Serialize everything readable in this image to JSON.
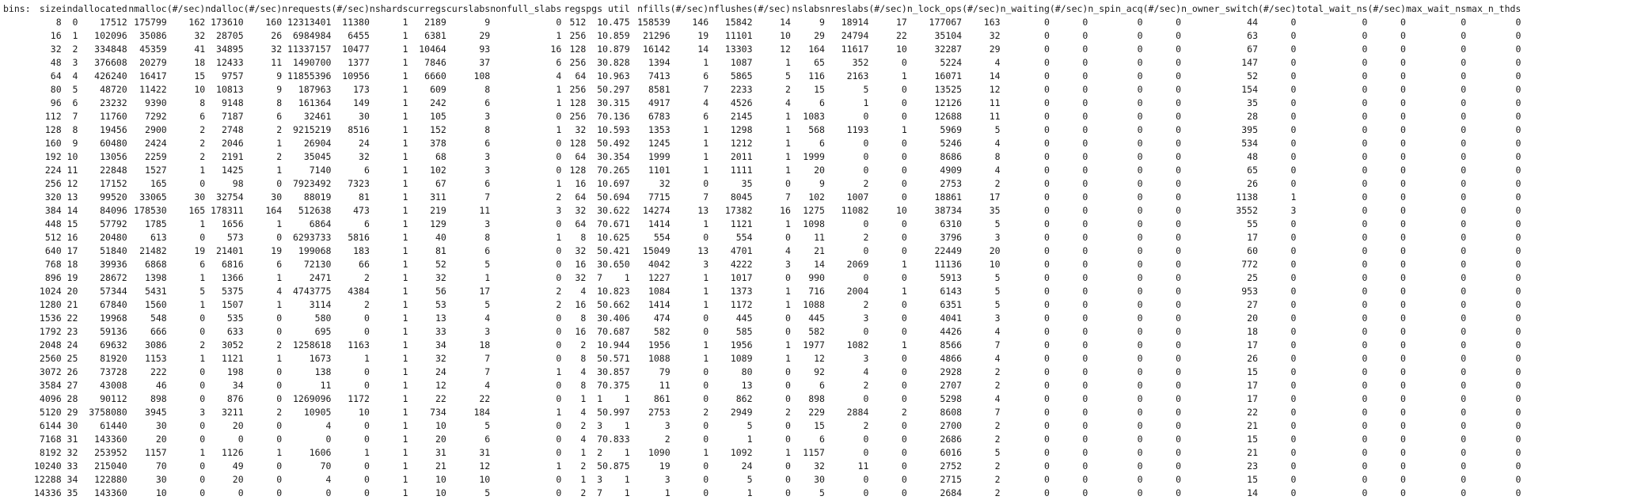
{
  "header": [
    "bins:",
    "size",
    "ind",
    "allocated",
    "nmalloc",
    "(#/sec)",
    "ndalloc",
    "(#/sec)",
    "nrequests",
    "(#/sec)",
    "nshards",
    "curregs",
    "curslabs",
    "nonfull_slabs",
    "regs",
    "pgs",
    "util",
    "nfills",
    "(#/sec)",
    "nflushes",
    "(#/sec)",
    "nslabs",
    "nreslabs",
    "(#/sec)",
    "n_lock_ops",
    "(#/sec)",
    "n_waiting",
    "(#/sec)",
    "n_spin_acq",
    "(#/sec)",
    "n_owner_switch",
    "(#/sec)",
    "total_wait_ns",
    "(#/sec)",
    "max_wait_ns",
    "max_n_thds"
  ],
  "rows": [
    [
      "",
      "8",
      "0",
      "17512",
      "175799",
      "162",
      "173610",
      "160",
      "12313401",
      "11380",
      "1",
      "2189",
      "9",
      "0",
      "512",
      "1",
      "0.475",
      "158539",
      "146",
      "15842",
      "14",
      "9",
      "18914",
      "17",
      "177067",
      "163",
      "0",
      "0",
      "0",
      "0",
      "44",
      "0",
      "0",
      "0",
      "0",
      "0"
    ],
    [
      "",
      "16",
      "1",
      "102096",
      "35086",
      "32",
      "28705",
      "26",
      "6984984",
      "6455",
      "1",
      "6381",
      "29",
      "1",
      "256",
      "1",
      "0.859",
      "21296",
      "19",
      "11101",
      "10",
      "29",
      "24794",
      "22",
      "35104",
      "32",
      "0",
      "0",
      "0",
      "0",
      "63",
      "0",
      "0",
      "0",
      "0",
      "0"
    ],
    [
      "",
      "32",
      "2",
      "334848",
      "45359",
      "41",
      "34895",
      "32",
      "11337157",
      "10477",
      "1",
      "10464",
      "93",
      "16",
      "128",
      "1",
      "0.879",
      "16142",
      "14",
      "13303",
      "12",
      "164",
      "11617",
      "10",
      "32287",
      "29",
      "0",
      "0",
      "0",
      "0",
      "67",
      "0",
      "0",
      "0",
      "0",
      "0"
    ],
    [
      "",
      "48",
      "3",
      "376608",
      "20279",
      "18",
      "12433",
      "11",
      "1490700",
      "1377",
      "1",
      "7846",
      "37",
      "6",
      "256",
      "3",
      "0.828",
      "1394",
      "1",
      "1087",
      "1",
      "65",
      "352",
      "0",
      "5224",
      "4",
      "0",
      "0",
      "0",
      "0",
      "147",
      "0",
      "0",
      "0",
      "0",
      "0"
    ],
    [
      "",
      "64",
      "4",
      "426240",
      "16417",
      "15",
      "9757",
      "9",
      "11855396",
      "10956",
      "1",
      "6660",
      "108",
      "4",
      "64",
      "1",
      "0.963",
      "7413",
      "6",
      "5865",
      "5",
      "116",
      "2163",
      "1",
      "16071",
      "14",
      "0",
      "0",
      "0",
      "0",
      "52",
      "0",
      "0",
      "0",
      "0",
      "0"
    ],
    [
      "",
      "80",
      "5",
      "48720",
      "11422",
      "10",
      "10813",
      "9",
      "187963",
      "173",
      "1",
      "609",
      "8",
      "1",
      "256",
      "5",
      "0.297",
      "8581",
      "7",
      "2233",
      "2",
      "15",
      "5",
      "0",
      "13525",
      "12",
      "0",
      "0",
      "0",
      "0",
      "154",
      "0",
      "0",
      "0",
      "0",
      "0"
    ],
    [
      "",
      "96",
      "6",
      "23232",
      "9390",
      "8",
      "9148",
      "8",
      "161364",
      "149",
      "1",
      "242",
      "6",
      "1",
      "128",
      "3",
      "0.315",
      "4917",
      "4",
      "4526",
      "4",
      "6",
      "1",
      "0",
      "12126",
      "11",
      "0",
      "0",
      "0",
      "0",
      "35",
      "0",
      "0",
      "0",
      "0",
      "0"
    ],
    [
      "",
      "112",
      "7",
      "11760",
      "7292",
      "6",
      "7187",
      "6",
      "32461",
      "30",
      "1",
      "105",
      "3",
      "0",
      "256",
      "7",
      "0.136",
      "6783",
      "6",
      "2145",
      "1",
      "1083",
      "0",
      "0",
      "12688",
      "11",
      "0",
      "0",
      "0",
      "0",
      "28",
      "0",
      "0",
      "0",
      "0",
      "0"
    ],
    [
      "",
      "128",
      "8",
      "19456",
      "2900",
      "2",
      "2748",
      "2",
      "9215219",
      "8516",
      "1",
      "152",
      "8",
      "1",
      "32",
      "1",
      "0.593",
      "1353",
      "1",
      "1298",
      "1",
      "568",
      "1193",
      "1",
      "5969",
      "5",
      "0",
      "0",
      "0",
      "0",
      "395",
      "0",
      "0",
      "0",
      "0",
      "0"
    ],
    [
      "",
      "160",
      "9",
      "60480",
      "2424",
      "2",
      "2046",
      "1",
      "26904",
      "24",
      "1",
      "378",
      "6",
      "0",
      "128",
      "5",
      "0.492",
      "1245",
      "1",
      "1212",
      "1",
      "6",
      "0",
      "0",
      "5246",
      "4",
      "0",
      "0",
      "0",
      "0",
      "534",
      "0",
      "0",
      "0",
      "0",
      "0"
    ],
    [
      "",
      "192",
      "10",
      "13056",
      "2259",
      "2",
      "2191",
      "2",
      "35045",
      "32",
      "1",
      "68",
      "3",
      "0",
      "64",
      "3",
      "0.354",
      "1999",
      "1",
      "2011",
      "1",
      "1999",
      "0",
      "0",
      "8686",
      "8",
      "0",
      "0",
      "0",
      "0",
      "48",
      "0",
      "0",
      "0",
      "0",
      "0"
    ],
    [
      "",
      "224",
      "11",
      "22848",
      "1527",
      "1",
      "1425",
      "1",
      "7140",
      "6",
      "1",
      "102",
      "3",
      "0",
      "128",
      "7",
      "0.265",
      "1101",
      "1",
      "1111",
      "1",
      "20",
      "0",
      "0",
      "4909",
      "4",
      "0",
      "0",
      "0",
      "0",
      "65",
      "0",
      "0",
      "0",
      "0",
      "0"
    ],
    [
      "",
      "256",
      "12",
      "17152",
      "165",
      "0",
      "98",
      "0",
      "7923492",
      "7323",
      "1",
      "67",
      "6",
      "1",
      "16",
      "1",
      "0.697",
      "32",
      "0",
      "35",
      "0",
      "9",
      "2",
      "0",
      "2753",
      "2",
      "0",
      "0",
      "0",
      "0",
      "26",
      "0",
      "0",
      "0",
      "0",
      "0"
    ],
    [
      "",
      "320",
      "13",
      "99520",
      "33065",
      "30",
      "32754",
      "30",
      "88019",
      "81",
      "1",
      "311",
      "7",
      "2",
      "64",
      "5",
      "0.694",
      "7715",
      "7",
      "8045",
      "7",
      "102",
      "1007",
      "0",
      "18861",
      "17",
      "0",
      "0",
      "0",
      "0",
      "1138",
      "1",
      "0",
      "0",
      "0",
      "0"
    ],
    [
      "",
      "384",
      "14",
      "84096",
      "178530",
      "165",
      "178311",
      "164",
      "512638",
      "473",
      "1",
      "219",
      "11",
      "3",
      "32",
      "3",
      "0.622",
      "14274",
      "13",
      "17382",
      "16",
      "1275",
      "11082",
      "10",
      "38734",
      "35",
      "0",
      "0",
      "0",
      "0",
      "3552",
      "3",
      "0",
      "0",
      "0",
      "0"
    ],
    [
      "",
      "448",
      "15",
      "57792",
      "1785",
      "1",
      "1656",
      "1",
      "6864",
      "6",
      "1",
      "129",
      "3",
      "0",
      "64",
      "7",
      "0.671",
      "1414",
      "1",
      "1121",
      "1",
      "1098",
      "0",
      "0",
      "6310",
      "5",
      "0",
      "0",
      "0",
      "0",
      "55",
      "0",
      "0",
      "0",
      "0",
      "0"
    ],
    [
      "",
      "512",
      "16",
      "20480",
      "613",
      "0",
      "573",
      "0",
      "6293733",
      "5816",
      "1",
      "40",
      "8",
      "1",
      "8",
      "1",
      "0.625",
      "554",
      "0",
      "554",
      "0",
      "11",
      "2",
      "0",
      "3796",
      "3",
      "0",
      "0",
      "0",
      "0",
      "17",
      "0",
      "0",
      "0",
      "0",
      "0"
    ],
    [
      "",
      "640",
      "17",
      "51840",
      "21482",
      "19",
      "21401",
      "19",
      "199068",
      "183",
      "1",
      "81",
      "6",
      "0",
      "32",
      "5",
      "0.421",
      "15049",
      "13",
      "4701",
      "4",
      "21",
      "0",
      "0",
      "22449",
      "20",
      "0",
      "0",
      "0",
      "0",
      "60",
      "0",
      "0",
      "0",
      "0",
      "0"
    ],
    [
      "",
      "768",
      "18",
      "39936",
      "6868",
      "6",
      "6816",
      "6",
      "72130",
      "66",
      "1",
      "52",
      "5",
      "0",
      "16",
      "3",
      "0.650",
      "4042",
      "3",
      "4222",
      "3",
      "14",
      "2069",
      "1",
      "11136",
      "10",
      "0",
      "0",
      "0",
      "0",
      "772",
      "0",
      "0",
      "0",
      "0",
      "0"
    ],
    [
      "",
      "896",
      "19",
      "28672",
      "1398",
      "1",
      "1366",
      "1",
      "2471",
      "2",
      "1",
      "32",
      "1",
      "0",
      "32",
      "7",
      "1",
      "1227",
      "1",
      "1017",
      "0",
      "990",
      "0",
      "0",
      "5913",
      "5",
      "0",
      "0",
      "0",
      "0",
      "25",
      "0",
      "0",
      "0",
      "0",
      "0"
    ],
    [
      "",
      "1024",
      "20",
      "57344",
      "5431",
      "5",
      "5375",
      "4",
      "4743775",
      "4384",
      "1",
      "56",
      "17",
      "2",
      "4",
      "1",
      "0.823",
      "1084",
      "1",
      "1373",
      "1",
      "716",
      "2004",
      "1",
      "6143",
      "5",
      "0",
      "0",
      "0",
      "0",
      "953",
      "0",
      "0",
      "0",
      "0",
      "0"
    ],
    [
      "",
      "1280",
      "21",
      "67840",
      "1560",
      "1",
      "1507",
      "1",
      "3114",
      "2",
      "1",
      "53",
      "5",
      "2",
      "16",
      "5",
      "0.662",
      "1414",
      "1",
      "1172",
      "1",
      "1088",
      "2",
      "0",
      "6351",
      "5",
      "0",
      "0",
      "0",
      "0",
      "27",
      "0",
      "0",
      "0",
      "0",
      "0"
    ],
    [
      "",
      "1536",
      "22",
      "19968",
      "548",
      "0",
      "535",
      "0",
      "580",
      "0",
      "1",
      "13",
      "4",
      "0",
      "8",
      "3",
      "0.406",
      "474",
      "0",
      "445",
      "0",
      "445",
      "3",
      "0",
      "4041",
      "3",
      "0",
      "0",
      "0",
      "0",
      "20",
      "0",
      "0",
      "0",
      "0",
      "0"
    ],
    [
      "",
      "1792",
      "23",
      "59136",
      "666",
      "0",
      "633",
      "0",
      "695",
      "0",
      "1",
      "33",
      "3",
      "0",
      "16",
      "7",
      "0.687",
      "582",
      "0",
      "585",
      "0",
      "582",
      "0",
      "0",
      "4426",
      "4",
      "0",
      "0",
      "0",
      "0",
      "18",
      "0",
      "0",
      "0",
      "0",
      "0"
    ],
    [
      "",
      "2048",
      "24",
      "69632",
      "3086",
      "2",
      "3052",
      "2",
      "1258618",
      "1163",
      "1",
      "34",
      "18",
      "0",
      "2",
      "1",
      "0.944",
      "1956",
      "1",
      "1956",
      "1",
      "1977",
      "1082",
      "1",
      "8566",
      "7",
      "0",
      "0",
      "0",
      "0",
      "17",
      "0",
      "0",
      "0",
      "0",
      "0"
    ],
    [
      "",
      "2560",
      "25",
      "81920",
      "1153",
      "1",
      "1121",
      "1",
      "1673",
      "1",
      "1",
      "32",
      "7",
      "0",
      "8",
      "5",
      "0.571",
      "1088",
      "1",
      "1089",
      "1",
      "12",
      "3",
      "0",
      "4866",
      "4",
      "0",
      "0",
      "0",
      "0",
      "26",
      "0",
      "0",
      "0",
      "0",
      "0"
    ],
    [
      "",
      "3072",
      "26",
      "73728",
      "222",
      "0",
      "198",
      "0",
      "138",
      "0",
      "1",
      "24",
      "7",
      "1",
      "4",
      "3",
      "0.857",
      "79",
      "0",
      "80",
      "0",
      "92",
      "4",
      "0",
      "2928",
      "2",
      "0",
      "0",
      "0",
      "0",
      "15",
      "0",
      "0",
      "0",
      "0",
      "0"
    ],
    [
      "",
      "3584",
      "27",
      "43008",
      "46",
      "0",
      "34",
      "0",
      "11",
      "0",
      "1",
      "12",
      "4",
      "0",
      "8",
      "7",
      "0.375",
      "11",
      "0",
      "13",
      "0",
      "6",
      "2",
      "0",
      "2707",
      "2",
      "0",
      "0",
      "0",
      "0",
      "17",
      "0",
      "0",
      "0",
      "0",
      "0"
    ],
    [
      "",
      "4096",
      "28",
      "90112",
      "898",
      "0",
      "876",
      "0",
      "1269096",
      "1172",
      "1",
      "22",
      "22",
      "0",
      "1",
      "1",
      "1",
      "861",
      "0",
      "862",
      "0",
      "898",
      "0",
      "0",
      "5298",
      "4",
      "0",
      "0",
      "0",
      "0",
      "17",
      "0",
      "0",
      "0",
      "0",
      "0"
    ],
    [
      "",
      "5120",
      "29",
      "3758080",
      "3945",
      "3",
      "3211",
      "2",
      "10905",
      "10",
      "1",
      "734",
      "184",
      "1",
      "4",
      "5",
      "0.997",
      "2753",
      "2",
      "2949",
      "2",
      "229",
      "2884",
      "2",
      "8608",
      "7",
      "0",
      "0",
      "0",
      "0",
      "22",
      "0",
      "0",
      "0",
      "0",
      "0"
    ],
    [
      "",
      "6144",
      "30",
      "61440",
      "30",
      "0",
      "20",
      "0",
      "4",
      "0",
      "1",
      "10",
      "5",
      "0",
      "2",
      "3",
      "1",
      "3",
      "0",
      "5",
      "0",
      "15",
      "2",
      "0",
      "2700",
      "2",
      "0",
      "0",
      "0",
      "0",
      "21",
      "0",
      "0",
      "0",
      "0",
      "0"
    ],
    [
      "",
      "7168",
      "31",
      "143360",
      "20",
      "0",
      "0",
      "0",
      "0",
      "0",
      "1",
      "20",
      "6",
      "0",
      "4",
      "7",
      "0.833",
      "2",
      "0",
      "1",
      "0",
      "6",
      "0",
      "0",
      "2686",
      "2",
      "0",
      "0",
      "0",
      "0",
      "15",
      "0",
      "0",
      "0",
      "0",
      "0"
    ],
    [
      "",
      "8192",
      "32",
      "253952",
      "1157",
      "1",
      "1126",
      "1",
      "1606",
      "1",
      "1",
      "31",
      "31",
      "0",
      "1",
      "2",
      "1",
      "1090",
      "1",
      "1092",
      "1",
      "1157",
      "0",
      "0",
      "6016",
      "5",
      "0",
      "0",
      "0",
      "0",
      "21",
      "0",
      "0",
      "0",
      "0",
      "0"
    ],
    [
      "",
      "10240",
      "33",
      "215040",
      "70",
      "0",
      "49",
      "0",
      "70",
      "0",
      "1",
      "21",
      "12",
      "1",
      "2",
      "5",
      "0.875",
      "19",
      "0",
      "24",
      "0",
      "32",
      "11",
      "0",
      "2752",
      "2",
      "0",
      "0",
      "0",
      "0",
      "23",
      "0",
      "0",
      "0",
      "0",
      "0"
    ],
    [
      "",
      "12288",
      "34",
      "122880",
      "30",
      "0",
      "20",
      "0",
      "4",
      "0",
      "1",
      "10",
      "10",
      "0",
      "1",
      "3",
      "1",
      "3",
      "0",
      "5",
      "0",
      "30",
      "0",
      "0",
      "2715",
      "2",
      "0",
      "0",
      "0",
      "0",
      "15",
      "0",
      "0",
      "0",
      "0",
      "0"
    ],
    [
      "",
      "14336",
      "35",
      "143360",
      "10",
      "0",
      "0",
      "0",
      "0",
      "0",
      "1",
      "10",
      "5",
      "0",
      "2",
      "7",
      "1",
      "1",
      "0",
      "1",
      "0",
      "5",
      "0",
      "0",
      "2684",
      "2",
      "0",
      "0",
      "0",
      "0",
      "14",
      "0",
      "0",
      "0",
      "0",
      "0"
    ]
  ]
}
